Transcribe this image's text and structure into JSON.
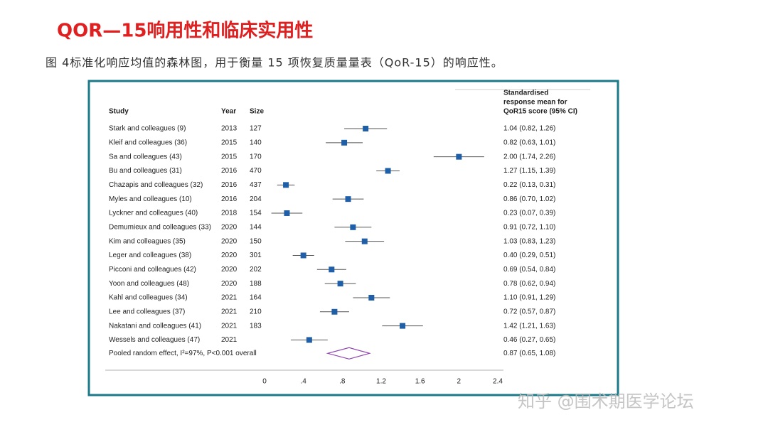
{
  "header": {
    "title": "QOR—15响用性和临床实用性",
    "caption": "图 4标准化响应均值的森林图，用于衡量 15 项恢复质量量表（QoR-15）的响应性。"
  },
  "watermark": "知乎 @围术期医学论坛",
  "chart_data": {
    "type": "forest",
    "columns": {
      "study": "Study",
      "year": "Year",
      "size": "Size",
      "estimate": [
        "Standardised",
        "response mean for",
        "QoR15 score (95% CI)"
      ]
    },
    "categories": [
      "Stark and colleagues (9)",
      "Kleif and colleagues (36)",
      "Sa and colleagues (43)",
      "Bu and colleagues (31)",
      "Chazapis and colleagues (32)",
      "Myles and colleagues (10)",
      "Lyckner and colleagues (40)",
      "Demumieux and colleagues (33)",
      "Kim and colleagues (35)",
      "Leger and colleagues (38)",
      "Picconi and colleagues (42)",
      "Yoon and colleagues (48)",
      "Kahl and colleagues (34)",
      "Lee and colleagues (37)",
      "Nakatani and colleagues (41)",
      "Wessels and colleagues (47)"
    ],
    "years": [
      2013,
      2015,
      2015,
      2016,
      2016,
      2016,
      2018,
      2020,
      2020,
      2020,
      2020,
      2020,
      2021,
      2021,
      2021,
      2021
    ],
    "sizes": [
      127,
      140,
      170,
      470,
      437,
      204,
      154,
      144,
      150,
      301,
      202,
      188,
      164,
      210,
      183,
      null
    ],
    "values": [
      1.04,
      0.82,
      2.0,
      1.27,
      0.22,
      0.86,
      0.23,
      0.91,
      1.03,
      0.4,
      0.69,
      0.78,
      1.1,
      0.72,
      1.42,
      0.46
    ],
    "ci_low": [
      0.82,
      0.63,
      1.74,
      1.15,
      0.13,
      0.7,
      0.07,
      0.72,
      0.83,
      0.29,
      0.54,
      0.62,
      0.91,
      0.57,
      1.21,
      0.27
    ],
    "ci_high": [
      1.26,
      1.01,
      2.26,
      1.39,
      0.31,
      1.02,
      0.39,
      1.1,
      1.23,
      0.51,
      0.84,
      0.94,
      1.29,
      0.87,
      1.63,
      0.65
    ],
    "value_labels": [
      "1.04 (0.82, 1.26)",
      "0.82 (0.63, 1.01)",
      "2.00 (1.74, 2.26)",
      "1.27 (1.15, 1.39)",
      "0.22 (0.13, 0.31)",
      "0.86 (0.70, 1.02)",
      "0.23 (0.07, 0.39)",
      "0.91 (0.72, 1.10)",
      "1.03 (0.83, 1.23)",
      "0.40 (0.29, 0.51)",
      "0.69 (0.54, 0.84)",
      "0.78 (0.62, 0.94)",
      "1.10 (0.91, 1.29)",
      "0.72 (0.57, 0.87)",
      "1.42 (1.21, 1.63)",
      "0.46 (0.27, 0.65)"
    ],
    "pooled": {
      "label": "Pooled random effect, I²=97%, P<0.001 overall",
      "value": 0.87,
      "ci_low": 0.65,
      "ci_high": 1.08,
      "value_label": "0.87 (0.65, 1.08)"
    },
    "color": "#1f5fa8",
    "pooled_color": "#8e44ad",
    "xlim": [
      0,
      2.4
    ],
    "xticks": [
      0,
      {
        "value": 0.4,
        "label": ".4"
      },
      {
        "value": 0.8,
        "label": ".8"
      },
      1.2,
      1.6,
      2,
      2.4
    ]
  }
}
